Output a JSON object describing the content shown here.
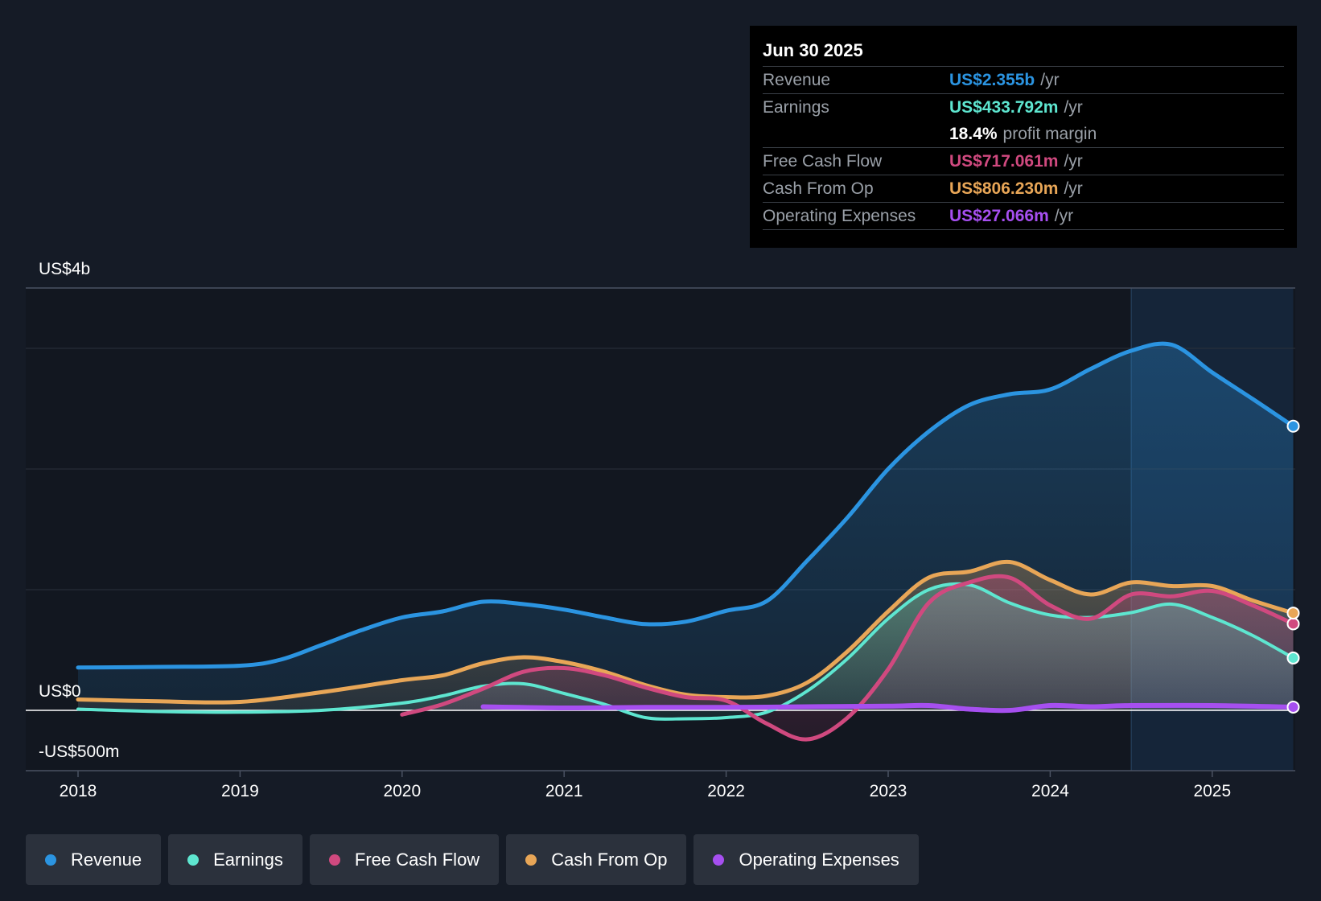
{
  "tooltip": {
    "date": "Jun 30 2025",
    "rows": [
      {
        "label": "Revenue",
        "value": "US$2.355b",
        "unit": "/yr",
        "color": "#2b94e1"
      },
      {
        "label": "Earnings",
        "value": "US$433.792m",
        "unit": "/yr",
        "color": "#5ee6d0"
      },
      {
        "margin_value": "18.4%",
        "margin_text": "profit margin"
      },
      {
        "label": "Free Cash Flow",
        "value": "US$717.061m",
        "unit": "/yr",
        "color": "#d0497f"
      },
      {
        "label": "Cash From Op",
        "value": "US$806.230m",
        "unit": "/yr",
        "color": "#e8a657"
      },
      {
        "label": "Operating Expenses",
        "value": "US$27.066m",
        "unit": "/yr",
        "color": "#a64ff0"
      }
    ]
  },
  "legend": [
    {
      "label": "Revenue",
      "color": "#2b94e1"
    },
    {
      "label": "Earnings",
      "color": "#5ee6d0"
    },
    {
      "label": "Free Cash Flow",
      "color": "#d0497f"
    },
    {
      "label": "Cash From Op",
      "color": "#e8a657"
    },
    {
      "label": "Operating Expenses",
      "color": "#a64ff0"
    }
  ],
  "chart_data": {
    "type": "area",
    "title": "",
    "xlabel": "",
    "ylabel": "",
    "x_range": [
      2018.0,
      2025.5
    ],
    "ylim": [
      -500,
      3500
    ],
    "y_tick_labels": [
      {
        "value": 3500,
        "label": "US$4b"
      },
      {
        "value": 0,
        "label": "US$0"
      },
      {
        "value": -500,
        "label": "-US$500m"
      }
    ],
    "x_ticks": [
      {
        "value": 2018,
        "label": "2018"
      },
      {
        "value": 2019,
        "label": "2019"
      },
      {
        "value": 2020,
        "label": "2020"
      },
      {
        "value": 2021,
        "label": "2021"
      },
      {
        "value": 2022,
        "label": "2022"
      },
      {
        "value": 2023,
        "label": "2023"
      },
      {
        "value": 2024,
        "label": "2024"
      },
      {
        "value": 2025,
        "label": "2025"
      }
    ],
    "highlight_start": 2024.5,
    "series": [
      {
        "name": "Revenue",
        "color": "#2b94e1",
        "points": [
          [
            2018.0,
            355
          ],
          [
            2018.5,
            360
          ],
          [
            2019.0,
            370
          ],
          [
            2019.25,
            420
          ],
          [
            2019.5,
            540
          ],
          [
            2019.75,
            665
          ],
          [
            2020.0,
            770
          ],
          [
            2020.25,
            820
          ],
          [
            2020.5,
            900
          ],
          [
            2020.75,
            880
          ],
          [
            2021.0,
            835
          ],
          [
            2021.25,
            770
          ],
          [
            2021.5,
            715
          ],
          [
            2021.75,
            735
          ],
          [
            2022.0,
            825
          ],
          [
            2022.25,
            905
          ],
          [
            2022.5,
            1240
          ],
          [
            2022.75,
            1600
          ],
          [
            2023.0,
            2000
          ],
          [
            2023.25,
            2310
          ],
          [
            2023.5,
            2530
          ],
          [
            2023.75,
            2620
          ],
          [
            2024.0,
            2660
          ],
          [
            2024.25,
            2830
          ],
          [
            2024.5,
            2980
          ],
          [
            2024.75,
            3030
          ],
          [
            2025.0,
            2800
          ],
          [
            2025.25,
            2580
          ],
          [
            2025.5,
            2355
          ]
        ]
      },
      {
        "name": "Earnings",
        "color": "#5ee6d0",
        "points": [
          [
            2018.0,
            10
          ],
          [
            2018.5,
            -10
          ],
          [
            2019.0,
            -15
          ],
          [
            2019.5,
            0
          ],
          [
            2020.0,
            60
          ],
          [
            2020.25,
            120
          ],
          [
            2020.5,
            200
          ],
          [
            2020.75,
            220
          ],
          [
            2021.0,
            140
          ],
          [
            2021.25,
            50
          ],
          [
            2021.5,
            -60
          ],
          [
            2021.75,
            -70
          ],
          [
            2022.0,
            -60
          ],
          [
            2022.25,
            -15
          ],
          [
            2022.5,
            160
          ],
          [
            2022.75,
            430
          ],
          [
            2023.0,
            760
          ],
          [
            2023.25,
            1000
          ],
          [
            2023.5,
            1040
          ],
          [
            2023.75,
            890
          ],
          [
            2024.0,
            790
          ],
          [
            2024.25,
            770
          ],
          [
            2024.5,
            810
          ],
          [
            2024.75,
            880
          ],
          [
            2025.0,
            770
          ],
          [
            2025.25,
            620
          ],
          [
            2025.5,
            433.792
          ]
        ]
      },
      {
        "name": "Free Cash Flow",
        "color": "#d0497f",
        "points": [
          [
            2020.0,
            -35
          ],
          [
            2020.25,
            50
          ],
          [
            2020.5,
            180
          ],
          [
            2020.75,
            320
          ],
          [
            2021.0,
            350
          ],
          [
            2021.25,
            290
          ],
          [
            2021.5,
            190
          ],
          [
            2021.75,
            110
          ],
          [
            2022.0,
            80
          ],
          [
            2022.25,
            -110
          ],
          [
            2022.5,
            -240
          ],
          [
            2022.75,
            -60
          ],
          [
            2023.0,
            340
          ],
          [
            2023.25,
            890
          ],
          [
            2023.5,
            1060
          ],
          [
            2023.75,
            1100
          ],
          [
            2024.0,
            870
          ],
          [
            2024.25,
            760
          ],
          [
            2024.5,
            960
          ],
          [
            2024.75,
            945
          ],
          [
            2025.0,
            990
          ],
          [
            2025.25,
            870
          ],
          [
            2025.5,
            717.061
          ]
        ]
      },
      {
        "name": "Cash From Op",
        "color": "#e8a657",
        "points": [
          [
            2018.0,
            90
          ],
          [
            2018.5,
            75
          ],
          [
            2019.0,
            70
          ],
          [
            2019.5,
            150
          ],
          [
            2020.0,
            250
          ],
          [
            2020.25,
            290
          ],
          [
            2020.5,
            390
          ],
          [
            2020.75,
            440
          ],
          [
            2021.0,
            400
          ],
          [
            2021.25,
            320
          ],
          [
            2021.5,
            210
          ],
          [
            2021.75,
            130
          ],
          [
            2022.0,
            110
          ],
          [
            2022.25,
            120
          ],
          [
            2022.5,
            230
          ],
          [
            2022.75,
            490
          ],
          [
            2023.0,
            820
          ],
          [
            2023.25,
            1100
          ],
          [
            2023.5,
            1150
          ],
          [
            2023.75,
            1230
          ],
          [
            2024.0,
            1080
          ],
          [
            2024.25,
            960
          ],
          [
            2024.5,
            1060
          ],
          [
            2024.75,
            1030
          ],
          [
            2025.0,
            1030
          ],
          [
            2025.25,
            910
          ],
          [
            2025.5,
            806.23
          ]
        ]
      },
      {
        "name": "Operating Expenses",
        "color": "#a64ff0",
        "points": [
          [
            2020.5,
            30
          ],
          [
            2021.0,
            20
          ],
          [
            2021.5,
            25
          ],
          [
            2022.0,
            25
          ],
          [
            2022.5,
            30
          ],
          [
            2023.0,
            35
          ],
          [
            2023.25,
            40
          ],
          [
            2023.5,
            10
          ],
          [
            2023.75,
            0
          ],
          [
            2024.0,
            40
          ],
          [
            2024.25,
            30
          ],
          [
            2024.5,
            40
          ],
          [
            2025.0,
            40
          ],
          [
            2025.5,
            27.066
          ]
        ]
      }
    ]
  }
}
